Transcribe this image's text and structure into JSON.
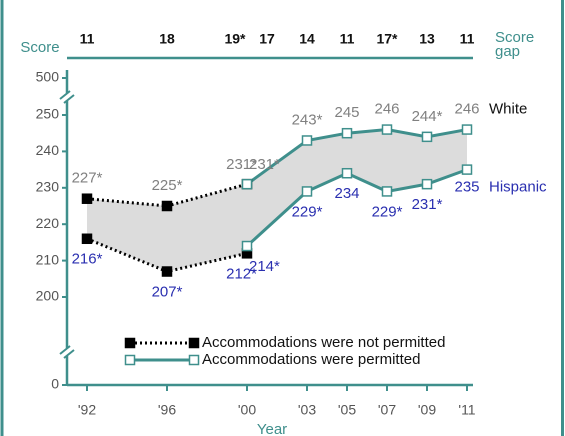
{
  "chart_data": {
    "type": "line",
    "ylabel": "Score",
    "xlabel": "Year",
    "ylim": [
      0,
      500
    ],
    "yticks": [
      0,
      200,
      210,
      220,
      230,
      240,
      250,
      500
    ],
    "xlim": [
      1991,
      2011.3
    ],
    "xticks": [
      {
        "value": 1992,
        "label": "'92"
      },
      {
        "value": 1996,
        "label": "'96"
      },
      {
        "value": 2000,
        "label": "'00"
      },
      {
        "value": 2003,
        "label": "'03"
      },
      {
        "value": 2005,
        "label": "'05"
      },
      {
        "value": 2007,
        "label": "'07"
      },
      {
        "value": 2009,
        "label": "'09"
      },
      {
        "value": 2011,
        "label": "'11"
      }
    ],
    "legend": [
      {
        "label": "Accommodations were not permitted",
        "color": "#000000",
        "style": "dotted",
        "marker": "filled"
      },
      {
        "label": "Accommodations were permitted",
        "color": "#3f8f8c",
        "style": "solid",
        "marker": "open"
      }
    ],
    "series": [
      {
        "name": "White",
        "group": 0,
        "legend": 0,
        "label_color": "#808080",
        "x": [
          1992,
          1996,
          2000
        ],
        "values": [
          227,
          225,
          231
        ],
        "value_labels": [
          "227*",
          "225*",
          "231*"
        ]
      },
      {
        "name": "Hispanic",
        "group": 1,
        "legend": 0,
        "label_color": "#2a2fb0",
        "x": [
          1992,
          1996,
          2000
        ],
        "values": [
          216,
          207,
          212
        ],
        "value_labels": [
          "216*",
          "207*",
          "212*"
        ]
      },
      {
        "name": "White",
        "group": 0,
        "legend": 1,
        "label_color": "#808080",
        "x": [
          2000,
          2003,
          2005,
          2007,
          2009,
          2011
        ],
        "values": [
          231,
          243,
          245,
          246,
          244,
          246
        ],
        "value_labels": [
          "231*",
          "243*",
          "245",
          "246",
          "244*",
          "246"
        ]
      },
      {
        "name": "Hispanic",
        "group": 1,
        "legend": 1,
        "label_color": "#2a2fb0",
        "x": [
          2000,
          2003,
          2005,
          2007,
          2009,
          2011
        ],
        "values": [
          214,
          229,
          234,
          229,
          231,
          235
        ],
        "value_labels": [
          "214*",
          "229*",
          "234",
          "229*",
          "231*",
          "235"
        ]
      }
    ],
    "gaps": {
      "title_lines": [
        "Score",
        "gap"
      ],
      "x": [
        1992,
        1996,
        2000,
        2000,
        2003,
        2005,
        2007,
        2009,
        2011
      ],
      "values": [
        11,
        18,
        19,
        17,
        14,
        11,
        17,
        13,
        11
      ],
      "value_labels": [
        "11",
        "18",
        "19*",
        "17",
        "14",
        "11",
        "17*",
        "13",
        "11"
      ]
    }
  }
}
